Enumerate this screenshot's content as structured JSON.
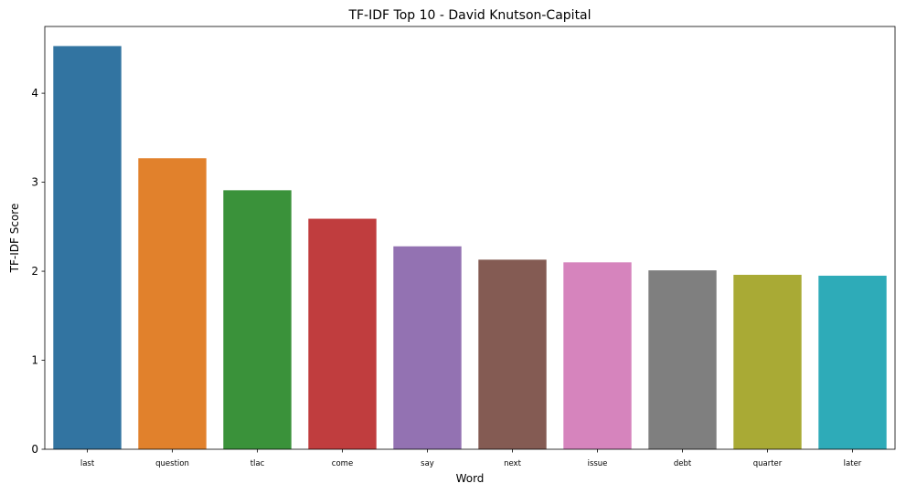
{
  "chart_data": {
    "type": "bar",
    "title": "TF-IDF Top 10 - David Knutson-Capital",
    "xlabel": "Word",
    "ylabel": "TF-IDF Score",
    "categories": [
      "last",
      "question",
      "tlac",
      "come",
      "say",
      "next",
      "issue",
      "debt",
      "quarter",
      "later"
    ],
    "values": [
      4.53,
      3.27,
      2.91,
      2.59,
      2.28,
      2.13,
      2.1,
      2.01,
      1.96,
      1.95
    ],
    "colors": [
      "#3274a1",
      "#e1812c",
      "#3a923a",
      "#c03d3e",
      "#9372b2",
      "#845b53",
      "#d684bd",
      "#7f7f7f",
      "#a9aa35",
      "#2eabb8"
    ],
    "yticks": [
      "0",
      "1",
      "2",
      "3",
      "4"
    ],
    "ylim": [
      0,
      4.75
    ],
    "grid": false,
    "legend": false
  }
}
